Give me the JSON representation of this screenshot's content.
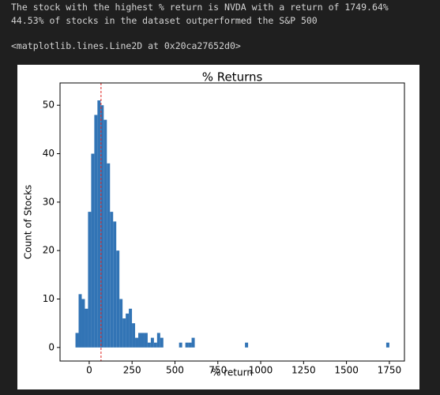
{
  "output_lines": [
    "The stock with the highest % return is NVDA with a return of 1749.64%",
    "44.53% of stocks in the dataset outperformed the S&P 500",
    "<matplotlib.lines.Line2D at 0x20ca27652d0>"
  ],
  "chart_data": {
    "type": "histogram",
    "title": "% Returns",
    "x_label": "% return",
    "y_label": "Count of Stocks",
    "color": "#3274b5",
    "bins": [
      -80,
      -61.7,
      -43.4,
      -25.1,
      -6.8,
      11.5,
      29.8,
      48.1,
      66.4,
      84.7,
      103,
      121.3,
      139.6,
      157.9,
      176.2,
      194.5,
      212.8,
      231.1,
      249.4,
      267.7,
      286,
      304.3,
      322.6,
      340.9,
      359.2,
      377.5,
      395.8,
      414.1,
      432.4,
      450.7,
      469,
      487.3,
      505.6,
      523.9,
      542.2,
      560.5,
      578.8,
      597.1,
      615.4,
      633.7,
      652,
      670.3,
      688.6,
      706.9,
      725.2,
      743.5,
      761.8,
      780.1,
      798.4,
      816.7,
      835,
      853.3,
      871.6,
      889.9,
      908.2,
      926.5,
      944.8,
      963.1,
      981.4,
      999.7,
      1018,
      1036.3,
      1054.6,
      1072.9,
      1091.2,
      1109.5,
      1127.8,
      1146.1,
      1164.4,
      1182.7,
      1201,
      1219.3,
      1237.6,
      1255.9,
      1274.2,
      1292.5,
      1310.8,
      1329.1,
      1347.4,
      1365.7,
      1384,
      1402.3,
      1420.6,
      1438.9,
      1457.2,
      1475.5,
      1493.8,
      1512.1,
      1530.4,
      1548.7,
      1567,
      1585.3,
      1603.6,
      1621.9,
      1640.2,
      1658.5,
      1676.8,
      1695.1,
      1713.4,
      1731.7,
      1750
    ],
    "counts": [
      3,
      11,
      10,
      8,
      28,
      40,
      48,
      51,
      50,
      47,
      38,
      28,
      26,
      20,
      10,
      6,
      7,
      8,
      5,
      2,
      3,
      3,
      3,
      1,
      2,
      1,
      3,
      2,
      0,
      0,
      0,
      0,
      0,
      1,
      0,
      1,
      1,
      2,
      0,
      0,
      0,
      0,
      0,
      0,
      0,
      0,
      0,
      0,
      0,
      0,
      0,
      0,
      0,
      0,
      1,
      0,
      0,
      0,
      0,
      0,
      0,
      0,
      0,
      0,
      0,
      0,
      0,
      0,
      0,
      0,
      0,
      0,
      0,
      0,
      0,
      0,
      0,
      0,
      0,
      0,
      0,
      0,
      0,
      0,
      0,
      0,
      0,
      0,
      0,
      0,
      0,
      0,
      0,
      0,
      0,
      0,
      0,
      0,
      0,
      1
    ],
    "vline_x": 69,
    "vline_color": "#e0201c",
    "xlim": [
      -170,
      1838
    ],
    "xticks": [
      0,
      250,
      500,
      750,
      1000,
      1250,
      1500,
      1750
    ],
    "ylim": [
      -2.8,
      54.6
    ],
    "yticks": [
      0,
      10,
      20,
      30,
      40,
      50
    ]
  }
}
